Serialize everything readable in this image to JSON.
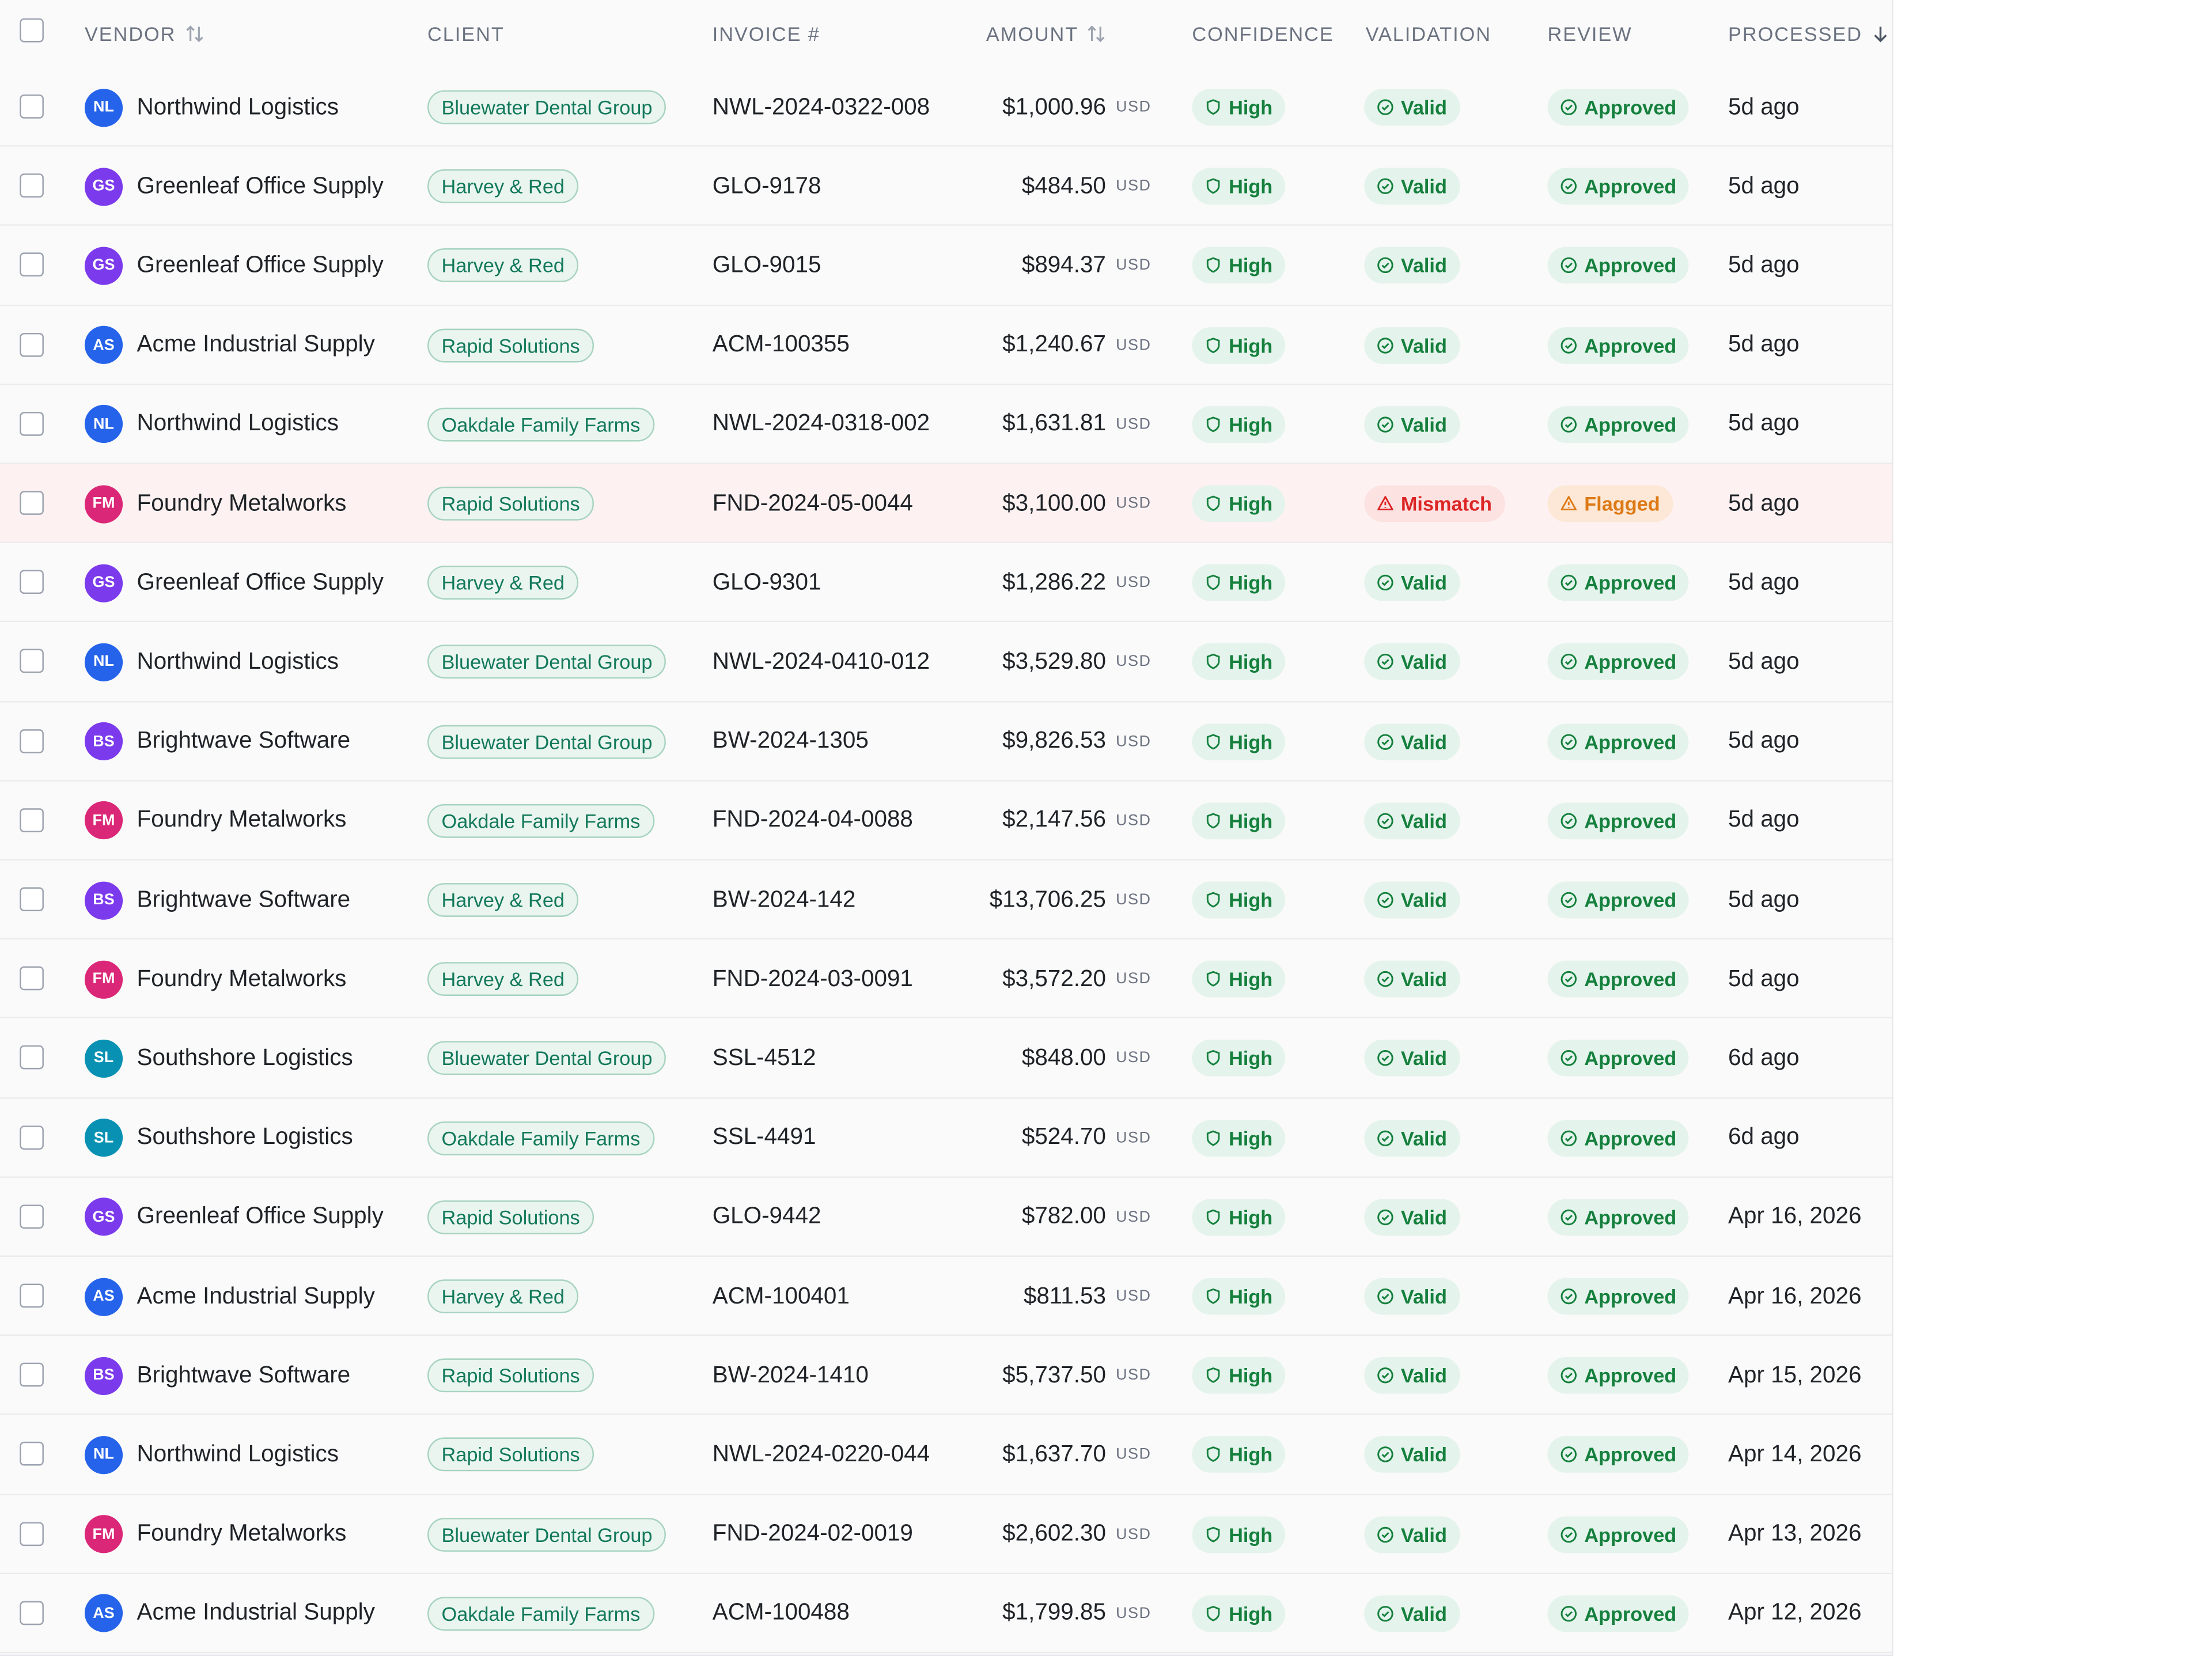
{
  "table": {
    "columns": [
      "VENDOR",
      "CLIENT",
      "INVOICE #",
      "AMOUNT",
      "CONFIDENCE",
      "VALIDATION",
      "REVIEW",
      "PROCESSED"
    ],
    "rows": [
      {
        "initials": "NL",
        "avatar_color": "#2563eb",
        "vendor": "Northwind Logistics",
        "client": "Bluewater Dental Group",
        "invoice": "NWL-2024-0322-008",
        "amount": "$1,000.96",
        "currency": "USD",
        "confidence": "High",
        "validation": "Valid",
        "review": "Approved",
        "processed": "5d ago",
        "flagged": false
      },
      {
        "initials": "GS",
        "avatar_color": "#7c3aed",
        "vendor": "Greenleaf Office Supply",
        "client": "Harvey & Red",
        "invoice": "GLO-9178",
        "amount": "$484.50",
        "currency": "USD",
        "confidence": "High",
        "validation": "Valid",
        "review": "Approved",
        "processed": "5d ago",
        "flagged": false
      },
      {
        "initials": "GS",
        "avatar_color": "#7c3aed",
        "vendor": "Greenleaf Office Supply",
        "client": "Harvey & Red",
        "invoice": "GLO-9015",
        "amount": "$894.37",
        "currency": "USD",
        "confidence": "High",
        "validation": "Valid",
        "review": "Approved",
        "processed": "5d ago",
        "flagged": false
      },
      {
        "initials": "AS",
        "avatar_color": "#2563eb",
        "vendor": "Acme Industrial Supply",
        "client": "Rapid Solutions",
        "invoice": "ACM-100355",
        "amount": "$1,240.67",
        "currency": "USD",
        "confidence": "High",
        "validation": "Valid",
        "review": "Approved",
        "processed": "5d ago",
        "flagged": false
      },
      {
        "initials": "NL",
        "avatar_color": "#2563eb",
        "vendor": "Northwind Logistics",
        "client": "Oakdale Family Farms",
        "invoice": "NWL-2024-0318-002",
        "amount": "$1,631.81",
        "currency": "USD",
        "confidence": "High",
        "validation": "Valid",
        "review": "Approved",
        "processed": "5d ago",
        "flagged": false
      },
      {
        "initials": "FM",
        "avatar_color": "#db2777",
        "vendor": "Foundry Metalworks",
        "client": "Rapid Solutions",
        "invoice": "FND-2024-05-0044",
        "amount": "$3,100.00",
        "currency": "USD",
        "confidence": "High",
        "validation": "Mismatch",
        "review": "Flagged",
        "processed": "5d ago",
        "flagged": true
      },
      {
        "initials": "GS",
        "avatar_color": "#7c3aed",
        "vendor": "Greenleaf Office Supply",
        "client": "Harvey & Red",
        "invoice": "GLO-9301",
        "amount": "$1,286.22",
        "currency": "USD",
        "confidence": "High",
        "validation": "Valid",
        "review": "Approved",
        "processed": "5d ago",
        "flagged": false
      },
      {
        "initials": "NL",
        "avatar_color": "#2563eb",
        "vendor": "Northwind Logistics",
        "client": "Bluewater Dental Group",
        "invoice": "NWL-2024-0410-012",
        "amount": "$3,529.80",
        "currency": "USD",
        "confidence": "High",
        "validation": "Valid",
        "review": "Approved",
        "processed": "5d ago",
        "flagged": false
      },
      {
        "initials": "BS",
        "avatar_color": "#7c3aed",
        "vendor": "Brightwave Software",
        "client": "Bluewater Dental Group",
        "invoice": "BW-2024-1305",
        "amount": "$9,826.53",
        "currency": "USD",
        "confidence": "High",
        "validation": "Valid",
        "review": "Approved",
        "processed": "5d ago",
        "flagged": false
      },
      {
        "initials": "FM",
        "avatar_color": "#db2777",
        "vendor": "Foundry Metalworks",
        "client": "Oakdale Family Farms",
        "invoice": "FND-2024-04-0088",
        "amount": "$2,147.56",
        "currency": "USD",
        "confidence": "High",
        "validation": "Valid",
        "review": "Approved",
        "processed": "5d ago",
        "flagged": false
      },
      {
        "initials": "BS",
        "avatar_color": "#7c3aed",
        "vendor": "Brightwave Software",
        "client": "Harvey & Red",
        "invoice": "BW-2024-142",
        "amount": "$13,706.25",
        "currency": "USD",
        "confidence": "High",
        "validation": "Valid",
        "review": "Approved",
        "processed": "5d ago",
        "flagged": false
      },
      {
        "initials": "FM",
        "avatar_color": "#db2777",
        "vendor": "Foundry Metalworks",
        "client": "Harvey & Red",
        "invoice": "FND-2024-03-0091",
        "amount": "$3,572.20",
        "currency": "USD",
        "confidence": "High",
        "validation": "Valid",
        "review": "Approved",
        "processed": "5d ago",
        "flagged": false
      },
      {
        "initials": "SL",
        "avatar_color": "#0891b2",
        "vendor": "Southshore Logistics",
        "client": "Bluewater Dental Group",
        "invoice": "SSL-4512",
        "amount": "$848.00",
        "currency": "USD",
        "confidence": "High",
        "validation": "Valid",
        "review": "Approved",
        "processed": "6d ago",
        "flagged": false
      },
      {
        "initials": "SL",
        "avatar_color": "#0891b2",
        "vendor": "Southshore Logistics",
        "client": "Oakdale Family Farms",
        "invoice": "SSL-4491",
        "amount": "$524.70",
        "currency": "USD",
        "confidence": "High",
        "validation": "Valid",
        "review": "Approved",
        "processed": "6d ago",
        "flagged": false
      },
      {
        "initials": "GS",
        "avatar_color": "#7c3aed",
        "vendor": "Greenleaf Office Supply",
        "client": "Rapid Solutions",
        "invoice": "GLO-9442",
        "amount": "$782.00",
        "currency": "USD",
        "confidence": "High",
        "validation": "Valid",
        "review": "Approved",
        "processed": "Apr 16, 2026",
        "flagged": false
      },
      {
        "initials": "AS",
        "avatar_color": "#2563eb",
        "vendor": "Acme Industrial Supply",
        "client": "Harvey & Red",
        "invoice": "ACM-100401",
        "amount": "$811.53",
        "currency": "USD",
        "confidence": "High",
        "validation": "Valid",
        "review": "Approved",
        "processed": "Apr 16, 2026",
        "flagged": false
      },
      {
        "initials": "BS",
        "avatar_color": "#7c3aed",
        "vendor": "Brightwave Software",
        "client": "Rapid Solutions",
        "invoice": "BW-2024-1410",
        "amount": "$5,737.50",
        "currency": "USD",
        "confidence": "High",
        "validation": "Valid",
        "review": "Approved",
        "processed": "Apr 15, 2026",
        "flagged": false
      },
      {
        "initials": "NL",
        "avatar_color": "#2563eb",
        "vendor": "Northwind Logistics",
        "client": "Rapid Solutions",
        "invoice": "NWL-2024-0220-044",
        "amount": "$1,637.70",
        "currency": "USD",
        "confidence": "High",
        "validation": "Valid",
        "review": "Approved",
        "processed": "Apr 14, 2026",
        "flagged": false
      },
      {
        "initials": "FM",
        "avatar_color": "#db2777",
        "vendor": "Foundry Metalworks",
        "client": "Bluewater Dental Group",
        "invoice": "FND-2024-02-0019",
        "amount": "$2,602.30",
        "currency": "USD",
        "confidence": "High",
        "validation": "Valid",
        "review": "Approved",
        "processed": "Apr 13, 2026",
        "flagged": false
      },
      {
        "initials": "AS",
        "avatar_color": "#2563eb",
        "vendor": "Acme Industrial Supply",
        "client": "Oakdale Family Farms",
        "invoice": "ACM-100488",
        "amount": "$1,799.85",
        "currency": "USD",
        "confidence": "High",
        "validation": "Valid",
        "review": "Approved",
        "processed": "Apr 12, 2026",
        "flagged": false
      }
    ]
  }
}
